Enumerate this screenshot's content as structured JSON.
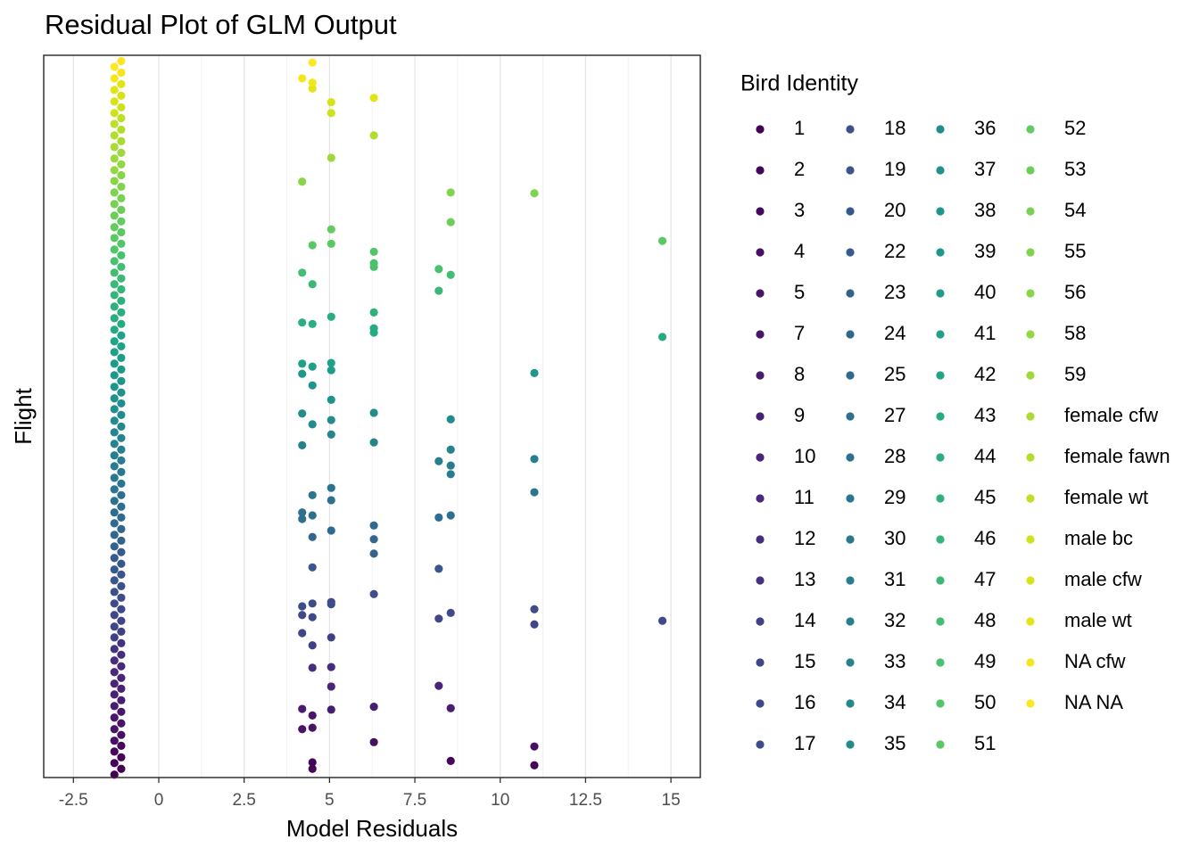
{
  "chart_data": {
    "type": "scatter",
    "title": "Residual Plot of GLM Output",
    "x_label": "Model Residuals",
    "y_label": "Flight",
    "legend_title": "Bird Identity",
    "xlim": [
      -3.37,
      15.86
    ],
    "ylim": [
      0,
      100
    ],
    "xticks": [
      -2.5,
      0,
      2.5,
      5,
      7.5,
      10,
      12.5,
      15
    ],
    "grid": true,
    "series": [
      {
        "name": "1",
        "color": "#440154",
        "x": [
          -1.3,
          -1.1
        ],
        "y": [
          0.4,
          1.2
        ]
      },
      {
        "name": "2",
        "color": "#450559",
        "x": [
          -1.3,
          -1.1,
          8.55,
          4.5,
          4.5,
          11
        ],
        "y": [
          2.0,
          2.8,
          2.3,
          2.1,
          1.2,
          1.7
        ]
      },
      {
        "name": "3",
        "color": "#46085c",
        "x": [
          -1.3,
          -1.1
        ],
        "y": [
          3.6,
          4.4
        ]
      },
      {
        "name": "4",
        "color": "#471063",
        "x": [
          -1.3,
          -1.1,
          6.3,
          11
        ],
        "y": [
          5.1,
          5.9,
          4.9,
          4.3
        ]
      },
      {
        "name": "5",
        "color": "#481467",
        "x": [
          -1.3,
          -1.1,
          4.2,
          4.5
        ],
        "y": [
          6.7,
          7.5,
          6.7,
          6.9
        ]
      },
      {
        "name": "7",
        "color": "#481769",
        "x": [
          -1.3,
          -1.1,
          4.5
        ],
        "y": [
          8.3,
          9.1,
          8.6
        ]
      },
      {
        "name": "8",
        "color": "#481c6e",
        "x": [
          -1.3,
          -1.1,
          4.2,
          6.3,
          8.55,
          5.05
        ],
        "y": [
          9.9,
          10.7,
          9.5,
          9.8,
          9.6,
          9.4
        ]
      },
      {
        "name": "9",
        "color": "#482173",
        "x": [
          -1.3,
          -1.1
        ],
        "y": [
          11.5,
          12.3
        ]
      },
      {
        "name": "10",
        "color": "#482576",
        "x": [
          -1.3,
          -1.1,
          5.05,
          8.2
        ],
        "y": [
          13.0,
          13.8,
          12.6,
          12.7
        ]
      },
      {
        "name": "11",
        "color": "#472a7a",
        "x": [
          -1.3,
          -1.1
        ],
        "y": [
          14.6,
          15.4
        ]
      },
      {
        "name": "12",
        "color": "#462e7c",
        "x": [
          -1.3,
          -1.1,
          4.5,
          5.05
        ],
        "y": [
          16.2,
          17.0,
          15.2,
          15.3
        ]
      },
      {
        "name": "13",
        "color": "#45327f",
        "x": [
          -1.3,
          -1.1
        ],
        "y": [
          17.8,
          18.6
        ]
      },
      {
        "name": "14",
        "color": "#423f85",
        "x": [
          -1.3,
          -1.1,
          4.5,
          5.05
        ],
        "y": [
          19.4,
          20.2,
          18.3,
          19.4
        ]
      },
      {
        "name": "15",
        "color": "#414487",
        "x": [
          -1.3,
          -1.1,
          11,
          4.2
        ],
        "y": [
          20.9,
          21.7,
          21.2,
          20.0
        ]
      },
      {
        "name": "16",
        "color": "#3f4889",
        "x": [
          -1.3,
          -1.1,
          4.2,
          4.5,
          8.2,
          8.55,
          14.75
        ],
        "y": [
          22.5,
          23.3,
          22.5,
          22.2,
          22.0,
          22.8,
          21.7
        ]
      },
      {
        "name": "17",
        "color": "#3e4c8a",
        "x": [
          -1.3,
          -1.1,
          4.2,
          4.5,
          5.05,
          5.05,
          11
        ],
        "y": [
          24.1,
          24.9,
          23.7,
          24.1,
          24.3,
          24.0,
          23.3
        ]
      },
      {
        "name": "18",
        "color": "#3c508b",
        "x": [
          -1.3,
          -1.1,
          6.3
        ],
        "y": [
          25.7,
          26.5,
          25.4
        ]
      },
      {
        "name": "19",
        "color": "#3a548c",
        "x": [
          -1.3,
          -1.1
        ],
        "y": [
          27.3,
          28.1
        ]
      },
      {
        "name": "20",
        "color": "#38588c",
        "x": [
          -1.3,
          -1.1,
          8.2,
          4.5
        ],
        "y": [
          28.8,
          29.6,
          28.9,
          29.1
        ]
      },
      {
        "name": "22",
        "color": "#375b8d",
        "x": [
          -1.3,
          -1.1
        ],
        "y": [
          30.4,
          31.2
        ]
      },
      {
        "name": "23",
        "color": "#33638d",
        "x": [
          -1.3,
          -1.1,
          6.3
        ],
        "y": [
          32.0,
          32.8,
          31.0
        ]
      },
      {
        "name": "24",
        "color": "#31668e",
        "x": [
          -1.3,
          -1.1,
          6.3,
          4.5
        ],
        "y": [
          33.6,
          34.4,
          33.0,
          33.3
        ]
      },
      {
        "name": "25",
        "color": "#306a8e",
        "x": [
          -1.3,
          -1.1,
          6.3,
          5.05
        ],
        "y": [
          35.2,
          36.0,
          34.9,
          34.2
        ]
      },
      {
        "name": "27",
        "color": "#2e6e8e",
        "x": [
          -1.3,
          -1.1,
          4.2,
          4.5,
          4.2,
          8.2,
          8.55
        ],
        "y": [
          36.7,
          37.5,
          36.7,
          36.3,
          35.8,
          36.0,
          36.3
        ]
      },
      {
        "name": "28",
        "color": "#2d718e",
        "x": [
          -1.3,
          -1.1,
          5.05
        ],
        "y": [
          38.3,
          39.1,
          38.4
        ]
      },
      {
        "name": "29",
        "color": "#2b758e",
        "x": [
          -1.3,
          -1.1,
          5.05,
          4.5,
          11
        ],
        "y": [
          39.9,
          40.7,
          40.1,
          39.1,
          39.5
        ]
      },
      {
        "name": "30",
        "color": "#2a788e",
        "x": [
          -1.3,
          -1.1
        ],
        "y": [
          41.5,
          42.3
        ]
      },
      {
        "name": "31",
        "color": "#287c8e",
        "x": [
          -1.3,
          -1.1,
          8.55,
          8.55
        ],
        "y": [
          43.1,
          43.9,
          43.2,
          42.0
        ]
      },
      {
        "name": "32",
        "color": "#277f8e",
        "x": [
          -1.3,
          -1.1,
          8.2,
          11
        ],
        "y": [
          44.6,
          45.4,
          43.8,
          44.1
        ]
      },
      {
        "name": "33",
        "color": "#26838e",
        "x": [
          -1.3,
          -1.1,
          6.3,
          4.2,
          8.55
        ],
        "y": [
          46.2,
          47.0,
          46.4,
          46.0,
          45.4
        ]
      },
      {
        "name": "34",
        "color": "#25868e",
        "x": [
          -1.3,
          -1.1,
          5.05
        ],
        "y": [
          47.8,
          48.6,
          47.5
        ]
      },
      {
        "name": "35",
        "color": "#238a8d",
        "x": [
          -1.3,
          -1.1,
          4.5,
          5.05,
          8.55
        ],
        "y": [
          49.4,
          50.2,
          48.9,
          49.5,
          49.6
        ]
      },
      {
        "name": "36",
        "color": "#228d8d",
        "x": [
          -1.3,
          -1.1,
          6.3,
          4.2
        ],
        "y": [
          51.0,
          51.8,
          50.5,
          50.4
        ]
      },
      {
        "name": "37",
        "color": "#21918c",
        "x": [
          -1.3,
          -1.1,
          5.05
        ],
        "y": [
          52.5,
          53.3,
          52.3
        ]
      },
      {
        "name": "38",
        "color": "#20958b",
        "x": [
          -1.3,
          -1.1,
          4.5
        ],
        "y": [
          54.1,
          54.9,
          54.3
        ]
      },
      {
        "name": "39",
        "color": "#1f988b",
        "x": [
          -1.3,
          -1.1,
          4.2,
          11
        ],
        "y": [
          55.7,
          56.5,
          55.9,
          56.0
        ]
      },
      {
        "name": "40",
        "color": "#1f9c89",
        "x": [
          -1.3,
          -1.1,
          5.05
        ],
        "y": [
          57.3,
          58.1,
          56.4
        ]
      },
      {
        "name": "41",
        "color": "#1fa088",
        "x": [
          -1.3,
          -1.1,
          4.2,
          5.05,
          4.5
        ],
        "y": [
          58.9,
          59.7,
          57.3,
          57.4,
          56.9
        ]
      },
      {
        "name": "42",
        "color": "#21a386",
        "x": [
          -1.3,
          -1.1
        ],
        "y": [
          60.4,
          61.2
        ]
      },
      {
        "name": "43",
        "color": "#25ab82",
        "x": [
          -1.3,
          -1.1,
          6.3,
          6.3,
          14.75
        ],
        "y": [
          62.0,
          62.8,
          62.2,
          61.6,
          61.0
        ]
      },
      {
        "name": "44",
        "color": "#2aae80",
        "x": [
          -1.3,
          -1.1,
          5.05,
          4.2,
          4.5
        ],
        "y": [
          63.6,
          64.4,
          63.8,
          63.0,
          62.8
        ]
      },
      {
        "name": "45",
        "color": "#2fb17d",
        "x": [
          -1.3,
          -1.1,
          6.3
        ],
        "y": [
          65.2,
          66.0,
          64.4
        ]
      },
      {
        "name": "46",
        "color": "#35b579",
        "x": [
          -1.3,
          -1.1
        ],
        "y": [
          66.8,
          67.6
        ]
      },
      {
        "name": "47",
        "color": "#3bb875",
        "x": [
          -1.3,
          -1.1,
          4.5,
          8.2
        ],
        "y": [
          68.3,
          69.1,
          68.3,
          67.4
        ]
      },
      {
        "name": "48",
        "color": "#43bd71",
        "x": [
          -1.3,
          -1.1,
          4.2,
          8.55
        ],
        "y": [
          69.9,
          70.7,
          69.9,
          69.6
        ]
      },
      {
        "name": "49",
        "color": "#4ac16d",
        "x": [
          -1.3,
          -1.1,
          6.3,
          6.3,
          8.2
        ],
        "y": [
          71.5,
          72.3,
          71.2,
          70.7,
          70.4
        ]
      },
      {
        "name": "50",
        "color": "#52c569",
        "x": [
          -1.3,
          -1.1,
          6.3
        ],
        "y": [
          73.1,
          73.9,
          72.8
        ]
      },
      {
        "name": "51",
        "color": "#5ac864",
        "x": [
          -1.3,
          -1.1,
          14.75,
          4.5,
          5.05
        ],
        "y": [
          74.7,
          75.5,
          74.3,
          73.7,
          73.9
        ]
      },
      {
        "name": "52",
        "color": "#63cb5f",
        "x": [
          -1.3,
          -1.1,
          5.05
        ],
        "y": [
          76.2,
          77.0,
          75.9
        ]
      },
      {
        "name": "53",
        "color": "#6dcd59",
        "x": [
          -1.3,
          -1.1,
          8.55
        ],
        "y": [
          77.8,
          78.6,
          76.9
        ]
      },
      {
        "name": "54",
        "color": "#78d152",
        "x": [
          -1.3,
          -1.1
        ],
        "y": [
          79.4,
          80.2
        ]
      },
      {
        "name": "55",
        "color": "#7fd34e",
        "x": [
          -1.3,
          -1.1,
          8.55,
          11
        ],
        "y": [
          81.0,
          81.8,
          81.0,
          80.9
        ]
      },
      {
        "name": "56",
        "color": "#89d548",
        "x": [
          -1.3,
          -1.1,
          4.2
        ],
        "y": [
          82.6,
          83.4,
          82.5
        ]
      },
      {
        "name": "58",
        "color": "#93d741",
        "x": [
          -1.3,
          -1.1
        ],
        "y": [
          84.1,
          84.9
        ]
      },
      {
        "name": "59",
        "color": "#9dd93b",
        "x": [
          -1.3,
          -1.1,
          5.05
        ],
        "y": [
          85.7,
          86.5,
          85.8
        ]
      },
      {
        "name": "female cfw",
        "color": "#a8db34",
        "x": [
          -1.3,
          -1.1
        ],
        "y": [
          87.3,
          88.1
        ]
      },
      {
        "name": "female fawn",
        "color": "#b2dd2d",
        "x": [
          -1.3,
          -1.1,
          6.3
        ],
        "y": [
          88.9,
          89.7,
          88.9
        ]
      },
      {
        "name": "female wt",
        "color": "#bddf26",
        "x": [
          -1.3,
          -1.1
        ],
        "y": [
          90.5,
          91.3
        ]
      },
      {
        "name": "male bc",
        "color": "#cde11d",
        "x": [
          -1.3,
          -1.1,
          5.05
        ],
        "y": [
          92.0,
          92.8,
          92.0
        ]
      },
      {
        "name": "male cfw",
        "color": "#d8e219",
        "x": [
          -1.3,
          -1.1,
          5.05
        ],
        "y": [
          93.6,
          94.4,
          93.5
        ]
      },
      {
        "name": "male wt",
        "color": "#e2e418",
        "x": [
          -1.3,
          -1.1,
          4.5,
          6.3
        ],
        "y": [
          95.2,
          96.0,
          95.4,
          94.1
        ]
      },
      {
        "name": "NA cfw",
        "color": "#f4e61e",
        "x": [
          -1.3,
          -1.1,
          4.2,
          4.5
        ],
        "y": [
          96.8,
          97.6,
          96.8,
          96.2
        ]
      },
      {
        "name": "NA NA",
        "color": "#fde725",
        "x": [
          -1.3,
          -1.1,
          4.5
        ],
        "y": [
          98.4,
          99.2,
          99.0
        ]
      }
    ]
  }
}
